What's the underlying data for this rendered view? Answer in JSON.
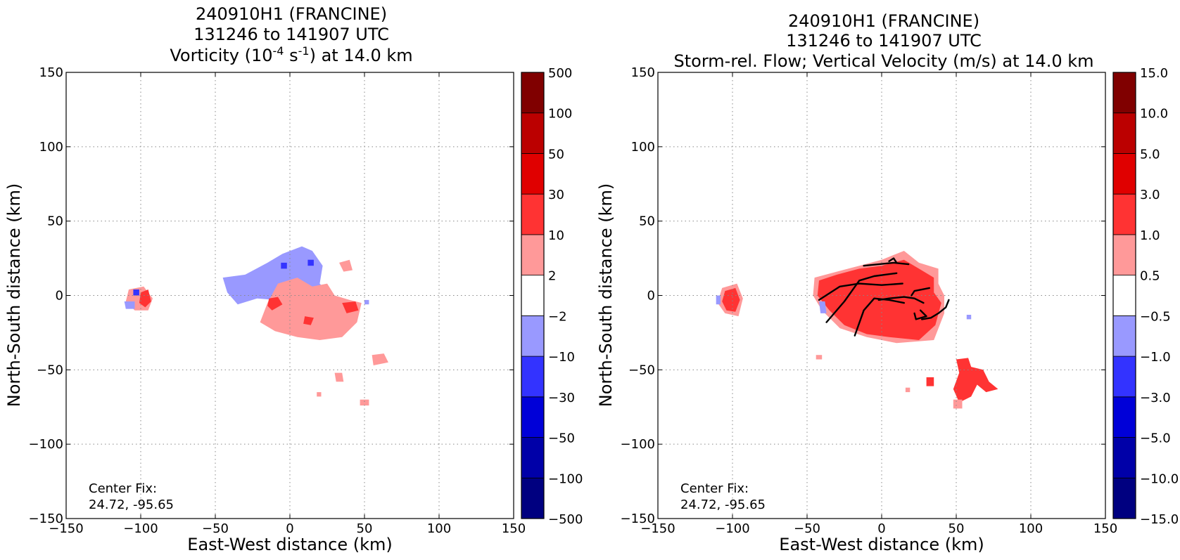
{
  "chart_data": [
    {
      "type": "contour",
      "title_lines": [
        "240910H1 (FRANCINE)",
        "131246 to 141907 UTC"
      ],
      "subtitle": {
        "prefix": "Vorticity (10",
        "exp1": "-4",
        "mid": " s",
        "exp2": "-1",
        "suffix": ") at 14.0 km"
      },
      "xlabel": "East-West distance (km)",
      "ylabel": "North-South distance (km)",
      "xlim": [
        -150,
        150
      ],
      "ylim": [
        -150,
        150
      ],
      "xticks": [
        -150,
        -100,
        -50,
        0,
        50,
        100,
        150
      ],
      "yticks": [
        -150,
        -100,
        -50,
        0,
        50,
        100,
        150
      ],
      "grid": true,
      "annotation": [
        "Center Fix:",
        "24.72, -95.65"
      ],
      "colorbar": {
        "levels": [
          "-500",
          "-100",
          "-50",
          "-30",
          "-10",
          "−2",
          "2",
          "10",
          "30",
          "50",
          "100",
          "500"
        ],
        "colors": [
          "#000080",
          "#0000a8",
          "#0000d8",
          "#3333ff",
          "#9999ff",
          "#ffffff",
          "#ff9999",
          "#ff3333",
          "#e00000",
          "#bb0000",
          "#800000"
        ]
      },
      "regions": [
        {
          "level": "-10..-2",
          "color": "#9999ff",
          "pts": [
            [
              -45,
              12
            ],
            [
              -30,
              14
            ],
            [
              -15,
              22
            ],
            [
              -5,
              28
            ],
            [
              8,
              33
            ],
            [
              15,
              30
            ],
            [
              22,
              20
            ],
            [
              20,
              8
            ],
            [
              30,
              -2
            ],
            [
              35,
              -6
            ],
            [
              25,
              -12
            ],
            [
              10,
              -8
            ],
            [
              0,
              -5
            ],
            [
              -10,
              -3
            ],
            [
              -22,
              -2
            ],
            [
              -35,
              -6
            ],
            [
              -42,
              2
            ]
          ]
        },
        {
          "level": "2..10",
          "color": "#ff9999",
          "pts": [
            [
              -8,
              8
            ],
            [
              5,
              12
            ],
            [
              15,
              6
            ],
            [
              25,
              8
            ],
            [
              30,
              0
            ],
            [
              40,
              -3
            ],
            [
              48,
              -5
            ],
            [
              45,
              -18
            ],
            [
              35,
              -28
            ],
            [
              20,
              -30
            ],
            [
              5,
              -28
            ],
            [
              -10,
              -24
            ],
            [
              -20,
              -18
            ],
            [
              -15,
              -5
            ]
          ]
        },
        {
          "level": "2..10",
          "color": "#ff9999",
          "pts": [
            [
              33,
              22
            ],
            [
              40,
              24
            ],
            [
              42,
              17
            ],
            [
              36,
              16
            ]
          ]
        },
        {
          "level": "2..10",
          "color": "#ff9999",
          "pts": [
            [
              -108,
              4
            ],
            [
              -98,
              6
            ],
            [
              -92,
              -2
            ],
            [
              -95,
              -10
            ],
            [
              -104,
              -10
            ],
            [
              -110,
              -4
            ]
          ]
        },
        {
          "level": "2..10",
          "color": "#ff9999",
          "pts": [
            [
              55,
              -40
            ],
            [
              63,
              -39
            ],
            [
              66,
              -45
            ],
            [
              56,
              -47
            ]
          ]
        },
        {
          "level": "2..10",
          "color": "#ff9999",
          "pts": [
            [
              18,
              -65
            ],
            [
              21,
              -65
            ],
            [
              21,
              -68
            ],
            [
              18,
              -68
            ]
          ]
        },
        {
          "level": "2..10",
          "color": "#ff9999",
          "pts": [
            [
              47,
              -70
            ],
            [
              53,
              -70
            ],
            [
              53,
              -74
            ],
            [
              47,
              -74
            ]
          ]
        },
        {
          "level": "2..10",
          "color": "#ff9999",
          "pts": [
            [
              30,
              -52
            ],
            [
              35,
              -52
            ],
            [
              36,
              -58
            ],
            [
              31,
              -58
            ]
          ]
        },
        {
          "level": "10..30",
          "color": "#ff3333",
          "pts": [
            [
              -14,
              -2
            ],
            [
              -8,
              -1
            ],
            [
              -5,
              -6
            ],
            [
              -12,
              -10
            ],
            [
              -15,
              -7
            ]
          ]
        },
        {
          "level": "10..30",
          "color": "#ff3333",
          "pts": [
            [
              35,
              -5
            ],
            [
              44,
              -4
            ],
            [
              46,
              -10
            ],
            [
              38,
              -12
            ]
          ]
        },
        {
          "level": "10..30",
          "color": "#ff3333",
          "pts": [
            [
              10,
              -14
            ],
            [
              16,
              -15
            ],
            [
              14,
              -20
            ],
            [
              9,
              -19
            ]
          ]
        },
        {
          "level": "10..30",
          "color": "#ff3333",
          "pts": [
            [
              -100,
              2
            ],
            [
              -95,
              4
            ],
            [
              -93,
              -4
            ],
            [
              -97,
              -8
            ],
            [
              -101,
              -5
            ]
          ]
        },
        {
          "level": "-30..-10",
          "color": "#3333ff",
          "pts": [
            [
              -6,
              22
            ],
            [
              -2,
              22
            ],
            [
              -2,
              18
            ],
            [
              -6,
              18
            ]
          ]
        },
        {
          "level": "-30..-10",
          "color": "#3333ff",
          "pts": [
            [
              12,
              24
            ],
            [
              16,
              24
            ],
            [
              16,
              20
            ],
            [
              12,
              20
            ]
          ]
        },
        {
          "level": "-30..-10",
          "color": "#3333ff",
          "pts": [
            [
              -105,
              4
            ],
            [
              -101,
              4
            ],
            [
              -101,
              0
            ],
            [
              -105,
              0
            ]
          ]
        },
        {
          "level": "-10..-2",
          "color": "#9999ff",
          "pts": [
            [
              -111,
              -4
            ],
            [
              -104,
              -4
            ],
            [
              -104,
              -9
            ],
            [
              -110,
              -9
            ]
          ]
        },
        {
          "level": "-10..-2",
          "color": "#9999ff",
          "pts": [
            [
              50,
              -3
            ],
            [
              53,
              -3
            ],
            [
              53,
              -6
            ],
            [
              50,
              -6
            ]
          ]
        }
      ]
    },
    {
      "type": "contour",
      "title_lines": [
        "240910H1 (FRANCINE)",
        "131246 to 141907 UTC"
      ],
      "subtitle_text": "Storm-rel. Flow; Vertical Velocity (m/s) at 14.0 km",
      "xlabel": "East-West distance (km)",
      "ylabel": "North-South distance (km)",
      "xlim": [
        -150,
        150
      ],
      "ylim": [
        -150,
        150
      ],
      "xticks": [
        -150,
        -100,
        -50,
        0,
        50,
        100,
        150
      ],
      "yticks": [
        -150,
        -100,
        -50,
        0,
        50,
        100,
        150
      ],
      "grid": true,
      "annotation": [
        "Center Fix:",
        "24.72, -95.65"
      ],
      "colorbar": {
        "levels": [
          "-15.0",
          "-10.0",
          "-5.0",
          "-3.0",
          "-1.0",
          "-0.5",
          "0.5",
          "1.0",
          "3.0",
          "5.0",
          "10.0",
          "15.0"
        ],
        "colors": [
          "#000080",
          "#0000a8",
          "#0000d8",
          "#3333ff",
          "#9999ff",
          "#ffffff",
          "#ff9999",
          "#ff3333",
          "#e00000",
          "#bb0000",
          "#800000"
        ]
      },
      "regions": [
        {
          "level": "0.5..1.0",
          "color": "#ff9999",
          "pts": [
            [
              -45,
              12
            ],
            [
              -30,
              16
            ],
            [
              -15,
              20
            ],
            [
              0,
              24
            ],
            [
              15,
              30
            ],
            [
              25,
              22
            ],
            [
              38,
              18
            ],
            [
              38,
              8
            ],
            [
              42,
              0
            ],
            [
              42,
              -12
            ],
            [
              35,
              -30
            ],
            [
              10,
              -32
            ],
            [
              -10,
              -28
            ],
            [
              -28,
              -22
            ],
            [
              -40,
              -10
            ],
            [
              -46,
              0
            ]
          ]
        },
        {
          "level": "1.0..3.0",
          "color": "#ff3333",
          "pts": [
            [
              -42,
              10
            ],
            [
              -30,
              14
            ],
            [
              -15,
              18
            ],
            [
              0,
              20
            ],
            [
              15,
              24
            ],
            [
              25,
              18
            ],
            [
              35,
              12
            ],
            [
              35,
              2
            ],
            [
              40,
              -5
            ],
            [
              36,
              -20
            ],
            [
              25,
              -30
            ],
            [
              5,
              -28
            ],
            [
              -10,
              -26
            ],
            [
              -25,
              -20
            ],
            [
              -35,
              -10
            ],
            [
              -43,
              0
            ]
          ]
        },
        {
          "level": "0.5..1.0",
          "color": "#ff9999",
          "pts": [
            [
              -107,
              5
            ],
            [
              -97,
              8
            ],
            [
              -93,
              -2
            ],
            [
              -96,
              -14
            ],
            [
              -105,
              -12
            ],
            [
              -110,
              -5
            ]
          ]
        },
        {
          "level": "1.0..3.0",
          "color": "#ff3333",
          "pts": [
            [
              -105,
              3
            ],
            [
              -98,
              5
            ],
            [
              -95,
              -3
            ],
            [
              -98,
              -11
            ],
            [
              -104,
              -10
            ],
            [
              -107,
              -4
            ]
          ]
        },
        {
          "level": "1.0..3.0",
          "color": "#ff3333",
          "pts": [
            [
              50,
              -43
            ],
            [
              58,
              -42
            ],
            [
              60,
              -48
            ],
            [
              68,
              -50
            ],
            [
              72,
              -58
            ],
            [
              78,
              -63
            ],
            [
              70,
              -65
            ],
            [
              64,
              -60
            ],
            [
              60,
              -68
            ],
            [
              52,
              -72
            ],
            [
              48,
              -63
            ],
            [
              52,
              -52
            ]
          ]
        },
        {
          "level": "0.5..1.0",
          "color": "#ff9999",
          "pts": [
            [
              48,
              -70
            ],
            [
              54,
              -70
            ],
            [
              54,
              -76
            ],
            [
              48,
              -76
            ]
          ]
        },
        {
          "level": "1.0..3.0",
          "color": "#ff3333",
          "pts": [
            [
              30,
              -55
            ],
            [
              35,
              -55
            ],
            [
              35,
              -61
            ],
            [
              30,
              -61
            ]
          ]
        },
        {
          "level": "0.5..1.0",
          "color": "#ff9999",
          "pts": [
            [
              16,
              -62
            ],
            [
              19,
              -62
            ],
            [
              19,
              -65
            ],
            [
              16,
              -65
            ]
          ]
        },
        {
          "level": "0.5..1.0",
          "color": "#ff9999",
          "pts": [
            [
              -44,
              -40
            ],
            [
              -40,
              -40
            ],
            [
              -40,
              -43
            ],
            [
              -44,
              -43
            ]
          ]
        },
        {
          "level": "-1.0..-0.5",
          "color": "#9999ff",
          "pts": [
            [
              -111,
              0
            ],
            [
              -108,
              0
            ],
            [
              -108,
              -6
            ],
            [
              -111,
              -6
            ]
          ]
        },
        {
          "level": "-1.0..-0.5",
          "color": "#9999ff",
          "pts": [
            [
              -42,
              -4
            ],
            [
              -38,
              -4
            ],
            [
              -37,
              -12
            ],
            [
              -41,
              -12
            ]
          ]
        },
        {
          "level": "-1.0..-0.5",
          "color": "#9999ff",
          "pts": [
            [
              57,
              -13
            ],
            [
              60,
              -13
            ],
            [
              60,
              -16
            ],
            [
              57,
              -16
            ]
          ]
        }
      ],
      "streamlines": [
        [
          [
            -12,
            20
          ],
          [
            -2,
            21
          ],
          [
            8,
            22
          ],
          [
            18,
            21
          ]
        ],
        [
          [
            -37,
            -18
          ],
          [
            -25,
            -4
          ],
          [
            -15,
            10
          ],
          [
            -5,
            13
          ],
          [
            10,
            15
          ]
        ],
        [
          [
            -42,
            -3
          ],
          [
            -28,
            6
          ],
          [
            -15,
            8
          ],
          [
            0,
            7
          ],
          [
            14,
            8
          ]
        ],
        [
          [
            -18,
            -27
          ],
          [
            -12,
            -10
          ],
          [
            -5,
            -2
          ],
          [
            5,
            -3
          ],
          [
            15,
            -5
          ]
        ],
        [
          [
            -2,
            -3
          ],
          [
            5,
            -2
          ],
          [
            15,
            -1
          ],
          [
            22,
            -2
          ],
          [
            28,
            -5
          ]
        ],
        [
          [
            10,
            22
          ],
          [
            8,
            25
          ],
          [
            5,
            23
          ]
        ],
        [
          [
            20,
            0
          ],
          [
            22,
            3
          ],
          [
            32,
            5
          ]
        ],
        [
          [
            26,
            -10
          ],
          [
            30,
            -14
          ],
          [
            23,
            -16
          ],
          [
            22,
            -12
          ]
        ],
        [
          [
            45,
            -3
          ],
          [
            43,
            -8
          ],
          [
            38,
            -12
          ],
          [
            33,
            -15
          ],
          [
            27,
            -16
          ]
        ]
      ]
    }
  ]
}
